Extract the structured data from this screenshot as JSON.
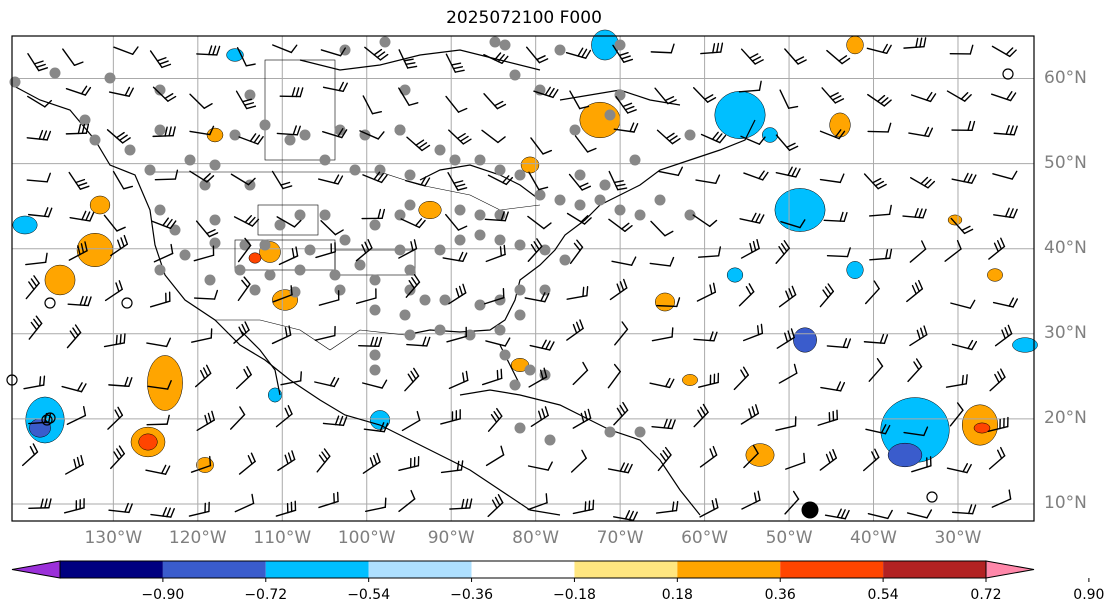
{
  "title": "2025072100 F000",
  "lat_labels": [
    {
      "text": "60°N",
      "lat": 60
    },
    {
      "text": "50°N",
      "lat": 50
    },
    {
      "text": "40°N",
      "lat": 40
    },
    {
      "text": "30°N",
      "lat": 30
    },
    {
      "text": "20°N",
      "lat": 20
    },
    {
      "text": "10°N",
      "lat": 10
    }
  ],
  "lon_labels": [
    {
      "text": "130°W",
      "lon": -130
    },
    {
      "text": "120°W",
      "lon": -120
    },
    {
      "text": "110°W",
      "lon": -110
    },
    {
      "text": "100°W",
      "lon": -100
    },
    {
      "text": "90°W",
      "lon": -90
    },
    {
      "text": "80°W",
      "lon": -80
    },
    {
      "text": "70°W",
      "lon": -70
    },
    {
      "text": "60°W",
      "lon": -60
    },
    {
      "text": "50°W",
      "lon": -50
    },
    {
      "text": "40°W",
      "lon": -40
    },
    {
      "text": "30°W",
      "lon": -30
    }
  ],
  "colorbar": {
    "ticks": [
      "−0.90",
      "−0.72",
      "−0.54",
      "−0.36",
      "−0.18",
      "0.18",
      "0.36",
      "0.54",
      "0.72",
      "0.90"
    ],
    "colors": [
      "#9b30d9",
      "#000080",
      "#3a5ccc",
      "#00bfff",
      "#aee0ff",
      "#ffffff",
      "#ffe680",
      "#ffa500",
      "#ff4500",
      "#b22222",
      "#ff88aa"
    ]
  },
  "map_extent": {
    "lon_min": -142,
    "lon_max": -21,
    "lat_min": 8,
    "lat_max": 65
  }
}
